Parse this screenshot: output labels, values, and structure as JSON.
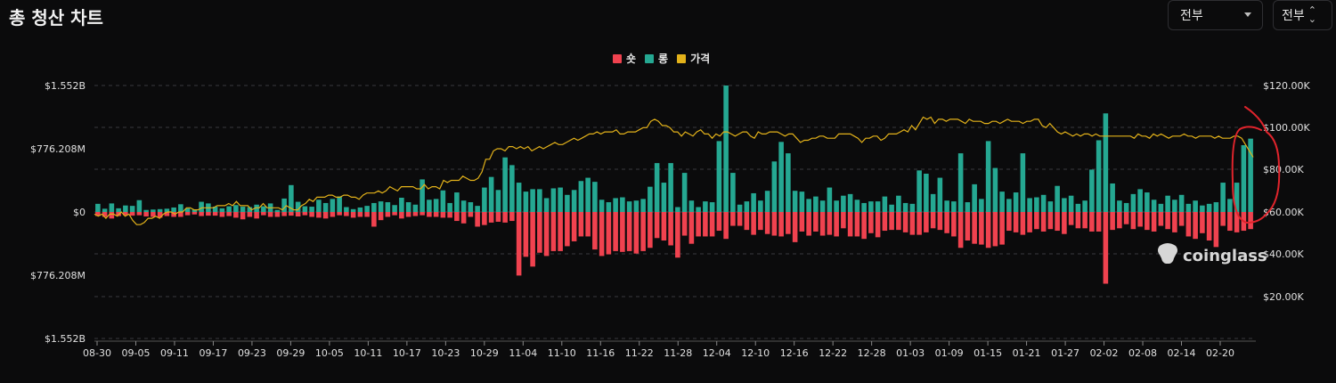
{
  "page": {
    "title": "총 청산 차트"
  },
  "controls": {
    "range_select": {
      "value": "전부"
    },
    "exchange_select": {
      "value": "전부"
    }
  },
  "legend": [
    {
      "label": "숏",
      "color": "#f0424f"
    },
    {
      "label": "롱",
      "color": "#25a892"
    },
    {
      "label": "가격",
      "color": "#e3b21a"
    }
  ],
  "watermark": "coinglass",
  "chart_data": {
    "type": "bar",
    "y_left": {
      "ticks": [
        "$1.552B",
        "$776.208M",
        "$0",
        "$776.208M",
        "$1.552B"
      ],
      "range_millions": [
        -1552,
        1552
      ]
    },
    "y_right": {
      "ticks": [
        "$120.00K",
        "$100.00K",
        "$80.00K",
        "$60.00K",
        "$40.00K",
        "$20.00K"
      ],
      "range_thousands": [
        0,
        120
      ]
    },
    "x_ticks": [
      "08-30",
      "09-05",
      "09-11",
      "09-17",
      "09-23",
      "09-29",
      "10-05",
      "10-11",
      "10-17",
      "10-23",
      "10-29",
      "11-04",
      "11-10",
      "11-16",
      "11-22",
      "11-28",
      "12-04",
      "12-10",
      "12-16",
      "12-22",
      "12-28",
      "01-03",
      "01-09",
      "01-15",
      "01-21",
      "01-27",
      "02-02",
      "02-08",
      "02-14",
      "02-20"
    ],
    "grid": true,
    "long_values_millions": [
      100,
      40,
      105,
      45,
      80,
      75,
      145,
      25,
      30,
      35,
      40,
      55,
      95,
      45,
      30,
      125,
      105,
      65,
      45,
      70,
      85,
      65,
      60,
      90,
      70,
      105,
      25,
      165,
      330,
      125,
      70,
      65,
      150,
      110,
      160,
      190,
      60,
      35,
      55,
      75,
      110,
      130,
      120,
      85,
      175,
      120,
      90,
      400,
      150,
      160,
      265,
      110,
      240,
      140,
      120,
      75,
      300,
      430,
      270,
      670,
      575,
      360,
      250,
      280,
      280,
      170,
      290,
      300,
      210,
      270,
      380,
      420,
      370,
      150,
      120,
      170,
      180,
      130,
      140,
      160,
      310,
      600,
      360,
      600,
      60,
      480,
      140,
      60,
      130,
      120,
      870,
      1552,
      480,
      90,
      130,
      230,
      140,
      260,
      620,
      860,
      720,
      260,
      250,
      160,
      190,
      140,
      300,
      140,
      200,
      220,
      150,
      110,
      130,
      130,
      190,
      90,
      200,
      110,
      100,
      510,
      470,
      220,
      420,
      140,
      130,
      720,
      120,
      340,
      160,
      870,
      540,
      250,
      160,
      240,
      720,
      170,
      180,
      210,
      130,
      320,
      170,
      200,
      100,
      140,
      520,
      880,
      1210,
      350,
      140,
      110,
      220,
      280,
      240,
      150,
      100,
      200,
      150,
      210,
      100,
      140,
      80,
      100,
      120,
      360,
      160,
      360,
      820,
      900
    ],
    "short_values_millions": [
      50,
      60,
      80,
      50,
      40,
      45,
      40,
      55,
      60,
      70,
      50,
      60,
      60,
      40,
      30,
      50,
      45,
      45,
      60,
      50,
      70,
      90,
      60,
      80,
      40,
      60,
      60,
      50,
      45,
      55,
      40,
      60,
      70,
      80,
      60,
      40,
      50,
      70,
      60,
      60,
      180,
      100,
      60,
      40,
      80,
      60,
      50,
      40,
      60,
      60,
      70,
      70,
      110,
      140,
      60,
      180,
      160,
      130,
      120,
      130,
      110,
      780,
      550,
      670,
      500,
      540,
      480,
      480,
      420,
      360,
      300,
      300,
      460,
      540,
      520,
      480,
      490,
      480,
      510,
      480,
      440,
      320,
      350,
      410,
      560,
      290,
      390,
      300,
      300,
      300,
      230,
      330,
      170,
      170,
      220,
      280,
      220,
      270,
      290,
      300,
      270,
      370,
      240,
      290,
      240,
      290,
      280,
      300,
      200,
      300,
      300,
      330,
      260,
      310,
      230,
      220,
      220,
      250,
      280,
      280,
      250,
      200,
      220,
      260,
      300,
      440,
      350,
      390,
      400,
      440,
      420,
      400,
      230,
      250,
      280,
      250,
      210,
      240,
      210,
      230,
      270,
      160,
      200,
      200,
      240,
      240,
      880,
      220,
      200,
      150,
      210,
      180,
      220,
      240,
      170,
      210,
      250,
      170,
      300,
      330,
      260,
      350,
      430,
      170,
      230,
      250,
      230,
      210
    ],
    "price_thousands": [
      59,
      58,
      59,
      57,
      59,
      59,
      58,
      60,
      58,
      59,
      56,
      54,
      54,
      55,
      57,
      57,
      58,
      57,
      59,
      60,
      60,
      59,
      60,
      60,
      62,
      62,
      61,
      61,
      62,
      62,
      62,
      62,
      63,
      63,
      63,
      64,
      63,
      65,
      63,
      63,
      63,
      61,
      62,
      62,
      64,
      62,
      62,
      62,
      62,
      61,
      63,
      62,
      61,
      61,
      63,
      64,
      66,
      65,
      67,
      67,
      67,
      68,
      68,
      67,
      67,
      68,
      68,
      67,
      67,
      66,
      68,
      69,
      69,
      69,
      70,
      69,
      70,
      72,
      71,
      70,
      72,
      72,
      72,
      72,
      71,
      71,
      73,
      71,
      72,
      72,
      71,
      75,
      74,
      75,
      75,
      75,
      77,
      76,
      75,
      75,
      76,
      79,
      85,
      85,
      89,
      90,
      90,
      89,
      91,
      91,
      90,
      91,
      90,
      91,
      89,
      90,
      91,
      90,
      91,
      92,
      93,
      92,
      92,
      93,
      94,
      95,
      94,
      95,
      96,
      97,
      97,
      98,
      97,
      98,
      98,
      98,
      99,
      97,
      97,
      98,
      98,
      98,
      99,
      100,
      100,
      103,
      104,
      103,
      101,
      101,
      100,
      98,
      98,
      96,
      98,
      97,
      96,
      98,
      99,
      97,
      97,
      95,
      97,
      96,
      98,
      98,
      97,
      96,
      97,
      98,
      98,
      96,
      95,
      98,
      97,
      97,
      98,
      98,
      98,
      97,
      96,
      97,
      97,
      95,
      93,
      94,
      94,
      95,
      95,
      96,
      96,
      95,
      95,
      95,
      97,
      97,
      97,
      97,
      96,
      95,
      93,
      95,
      95,
      96,
      96,
      94,
      95,
      97,
      97,
      97,
      98,
      99,
      98,
      101,
      99,
      102,
      105,
      104,
      105,
      102,
      104,
      104,
      103,
      104,
      104,
      104,
      103,
      102,
      104,
      103,
      103,
      103,
      102,
      102,
      103,
      103,
      102,
      103,
      104,
      103,
      103,
      103,
      102,
      103,
      103,
      104,
      104,
      101,
      100,
      102,
      100,
      98,
      97,
      98,
      97,
      96,
      97,
      96,
      97,
      97,
      96,
      97,
      96,
      96,
      96,
      96,
      96,
      96,
      96,
      96,
      96,
      95,
      97,
      96,
      96,
      95,
      97,
      96,
      97,
      96,
      95,
      96,
      96,
      96,
      97,
      96,
      96,
      95,
      96,
      96,
      96,
      96,
      95,
      96,
      95,
      95,
      95,
      96,
      96,
      95,
      92,
      89,
      86
    ]
  }
}
